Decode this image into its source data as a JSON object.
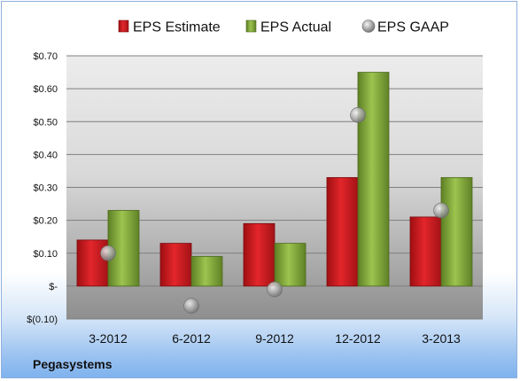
{
  "chart_data": {
    "type": "bar",
    "categories": [
      "3-2012",
      "6-2012",
      "9-2012",
      "12-2012",
      "3-2013"
    ],
    "series": [
      {
        "name": "EPS Estimate",
        "kind": "bar",
        "color": "#c8161d",
        "values": [
          0.14,
          0.13,
          0.19,
          0.33,
          0.21
        ]
      },
      {
        "name": "EPS Actual",
        "kind": "bar",
        "color": "#7ea63a",
        "values": [
          0.23,
          0.09,
          0.13,
          0.65,
          0.33
        ]
      },
      {
        "name": "EPS GAAP",
        "kind": "marker",
        "color": "#a6a6a6",
        "values": [
          0.1,
          -0.06,
          -0.01,
          0.52,
          0.23
        ]
      }
    ],
    "ylim": [
      -0.1,
      0.7
    ],
    "ytick_values": [
      -0.1,
      0.0,
      0.1,
      0.2,
      0.3,
      0.4,
      0.5,
      0.6,
      0.7
    ],
    "ytick_labels": [
      "$(0.10)",
      "$-",
      "$0.10",
      "$0.20",
      "$0.30",
      "$0.40",
      "$0.50",
      "$0.60",
      "$0.70"
    ],
    "grid": true,
    "legend_position": "top",
    "footer": "Pegasystems"
  }
}
